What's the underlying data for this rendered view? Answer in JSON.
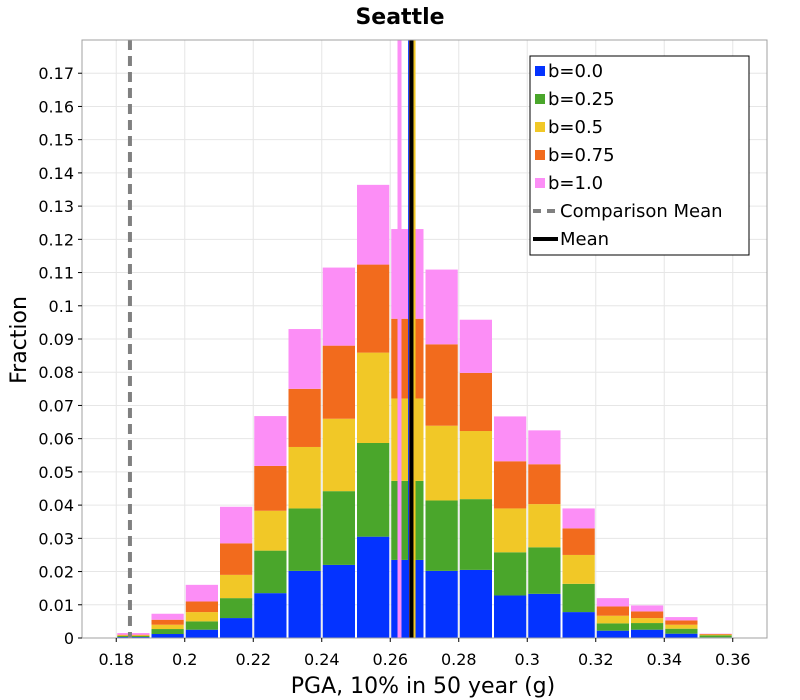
{
  "chart_data": {
    "type": "bar",
    "stacked": true,
    "title": "Seattle",
    "xlabel": "PGA, 10% in 50 year (g)",
    "ylabel": "Fraction",
    "xlim": [
      0.17,
      0.37
    ],
    "ylim": [
      0,
      0.18
    ],
    "bin_width": 0.01,
    "x_ticks": [
      0.18,
      0.2,
      0.22,
      0.24,
      0.26,
      0.28,
      0.3,
      0.32,
      0.34,
      0.36
    ],
    "x_tick_labels": [
      "0.18",
      "0.2",
      "0.22",
      "0.24",
      "0.26",
      "0.28",
      "0.3",
      "0.32",
      "0.34",
      "0.36"
    ],
    "y_ticks": [
      0,
      0.01,
      0.02,
      0.03,
      0.04,
      0.05,
      0.06,
      0.07,
      0.08,
      0.09,
      0.1,
      0.11,
      0.12,
      0.13,
      0.14,
      0.15,
      0.16,
      0.17
    ],
    "y_tick_labels": [
      "0",
      "0.01",
      "0.02",
      "0.03",
      "0.04",
      "0.05",
      "0.06",
      "0.07",
      "0.08",
      "0.09",
      "0.1",
      "0.11",
      "0.12",
      "0.13",
      "0.14",
      "0.15",
      "0.16",
      "0.17"
    ],
    "grid": true,
    "legend_position": "top-right",
    "bin_centers": [
      0.185,
      0.195,
      0.205,
      0.215,
      0.225,
      0.235,
      0.245,
      0.255,
      0.265,
      0.275,
      0.285,
      0.295,
      0.305,
      0.315,
      0.325,
      0.335,
      0.345,
      0.355,
      0.365
    ],
    "series": [
      {
        "name": "b=0.0",
        "color": "#0433ff",
        "values": [
          0.0003,
          0.0012,
          0.0025,
          0.006,
          0.0135,
          0.0202,
          0.022,
          0.0305,
          0.0235,
          0.0202,
          0.0205,
          0.0128,
          0.0133,
          0.0078,
          0.0022,
          0.0025,
          0.0013,
          0.0002,
          0.0
        ]
      },
      {
        "name": "b=0.25",
        "color": "#4aa62b",
        "values": [
          0.0003,
          0.0015,
          0.0025,
          0.006,
          0.0128,
          0.0188,
          0.0222,
          0.0282,
          0.0238,
          0.0212,
          0.0213,
          0.013,
          0.014,
          0.0085,
          0.0022,
          0.002,
          0.0015,
          0.0006,
          0.0
        ]
      },
      {
        "name": "b=0.5",
        "color": "#f1c827",
        "values": [
          0.0002,
          0.0013,
          0.0028,
          0.007,
          0.012,
          0.0185,
          0.0218,
          0.0272,
          0.0248,
          0.0225,
          0.0205,
          0.0132,
          0.013,
          0.0087,
          0.0023,
          0.0015,
          0.0012,
          0.0002,
          0.0
        ]
      },
      {
        "name": "b=0.75",
        "color": "#f26b1d",
        "values": [
          0.0002,
          0.0015,
          0.0032,
          0.0095,
          0.0135,
          0.0175,
          0.022,
          0.0265,
          0.024,
          0.0245,
          0.0175,
          0.0142,
          0.012,
          0.008,
          0.0028,
          0.002,
          0.0013,
          0.0002,
          0.0
        ]
      },
      {
        "name": "b=1.0",
        "color": "#fc8ef6",
        "values": [
          0.0005,
          0.0018,
          0.005,
          0.011,
          0.015,
          0.018,
          0.0235,
          0.024,
          0.027,
          0.0225,
          0.016,
          0.0135,
          0.0102,
          0.006,
          0.0025,
          0.0018,
          0.001,
          0.0001,
          0.0
        ]
      }
    ],
    "lines": [
      {
        "name": "Comparison Mean",
        "style": "dashed",
        "color": "#808080",
        "x": 0.184
      },
      {
        "name": "Mean",
        "style": "solid",
        "color": "#000000",
        "x": 0.2662
      }
    ],
    "series_means": [
      {
        "series": "b=0.0",
        "color": "#0433ff",
        "x": 0.2658
      },
      {
        "series": "b=0.25",
        "color": "#4aa62b",
        "x": 0.2664
      },
      {
        "series": "b=0.5",
        "color": "#f1c827",
        "x": 0.2668
      },
      {
        "series": "b=0.75",
        "color": "#f26b1d",
        "x": 0.2661
      },
      {
        "series": "b=1.0",
        "color": "#fc8ef6",
        "x": 0.2627
      }
    ]
  }
}
